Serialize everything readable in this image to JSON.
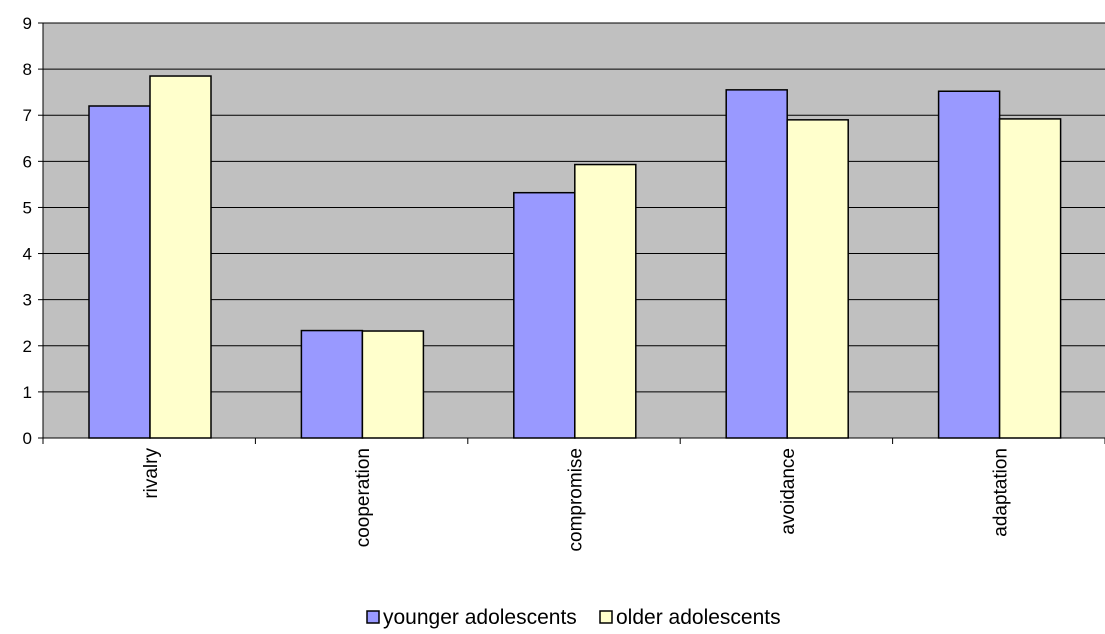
{
  "chart_data": {
    "type": "bar",
    "title": "",
    "xlabel": "",
    "ylabel": "",
    "categories": [
      "rivalry",
      "cooperation",
      "compromise",
      "avoidance",
      "adaptation"
    ],
    "series": [
      {
        "name": "younger adolescents",
        "color": "#9999ff",
        "values": [
          7.2,
          2.33,
          5.32,
          7.55,
          7.52
        ]
      },
      {
        "name": "older adolescents",
        "color": "#ffffcc",
        "values": [
          7.85,
          2.32,
          5.93,
          6.9,
          6.92
        ]
      }
    ],
    "ylim": [
      0,
      9
    ],
    "yticks": [
      "0",
      "1",
      "2",
      "3",
      "4",
      "5",
      "6",
      "7",
      "8",
      "9"
    ],
    "grid": true,
    "legend": "bottom-center",
    "plot_background": "#c0c0c0"
  }
}
